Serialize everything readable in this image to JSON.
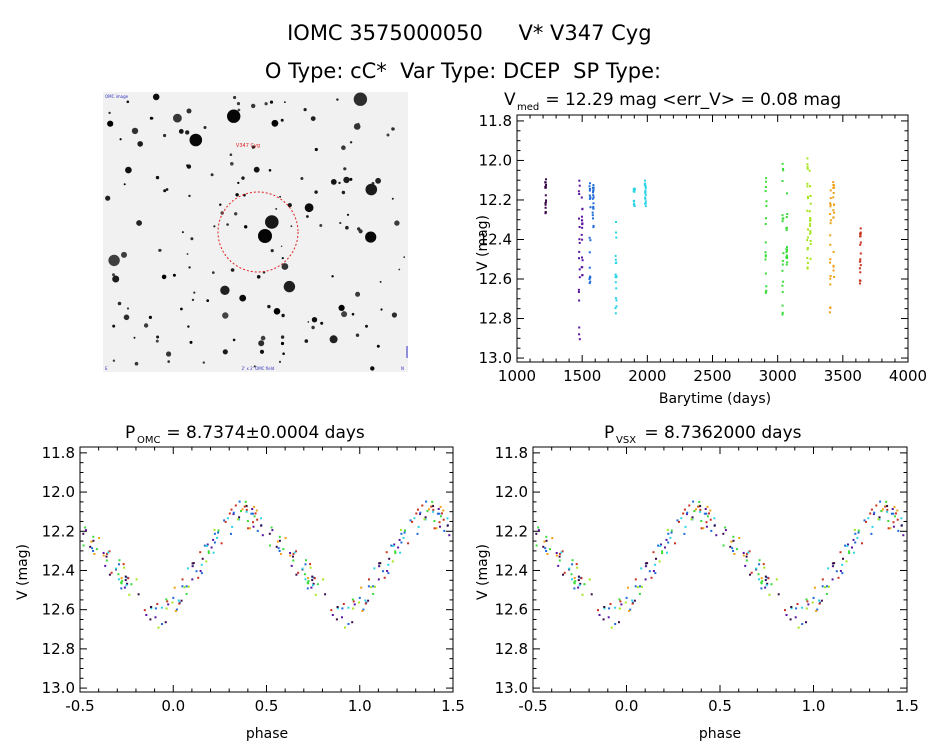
{
  "header": {
    "line1_id": "IOMC 3575000050",
    "line1_name": "V* V347 Cyg",
    "line2": "O Type: cC*  Var Type: DCEP  SP Type:"
  },
  "image_panel": {
    "corner_labels": {
      "top_left": "OMC image",
      "bottom_left": "E",
      "bottom_center": "2' x 2' OMC field",
      "bottom_right": "N",
      "marker": "V347 Cyg"
    }
  },
  "colors": {
    "dark_purple": "#3a0a4a",
    "purple": "#5a14a0",
    "blue": "#1e6ad8",
    "cyan": "#2ad4e6",
    "green": "#3adc3a",
    "lime": "#a6e61e",
    "orange": "#f0a014",
    "red": "#c8321e"
  },
  "chart_data": [
    {
      "type": "scatter",
      "panel": "lightcurve",
      "title": "V_med = 12.29 mag <err_V> = 0.08 mag",
      "title_parts": {
        "main": "V",
        "sub": "med",
        "rest": " = 12.29 mag <err_V> = 0.08 mag"
      },
      "xlabel": "Barytime (days)",
      "ylabel": "V (mag)",
      "xlim": [
        1000,
        4000
      ],
      "ylim": [
        13.02,
        11.77
      ],
      "y_inverted": true,
      "xticks": [
        "1000",
        "1500",
        "2000",
        "2500",
        "3000",
        "3500",
        "4000"
      ],
      "xtick_values": [
        1000,
        1500,
        2000,
        2500,
        3000,
        3500,
        4000
      ],
      "yticks": [
        "11.8",
        "12.0",
        "12.2",
        "12.4",
        "12.6",
        "12.8",
        "13.0"
      ],
      "ytick_values": [
        11.8,
        12.0,
        12.2,
        12.4,
        12.6,
        12.8,
        13.0
      ],
      "groups": [
        {
          "color": "dark_purple",
          "x": 1220,
          "v_min": 12.09,
          "v_max": 12.28
        },
        {
          "color": "purple",
          "x": 1478,
          "v_min": 12.1,
          "v_max": 12.93
        },
        {
          "color": "purple",
          "x": 1500,
          "v_min": 12.1,
          "v_max": 12.6
        },
        {
          "color": "blue",
          "x": 1560,
          "v_min": 12.1,
          "v_max": 12.64
        },
        {
          "color": "blue",
          "x": 1585,
          "v_min": 12.12,
          "v_max": 12.35
        },
        {
          "color": "cyan",
          "x": 1760,
          "v_min": 12.2,
          "v_max": 12.82
        },
        {
          "color": "cyan",
          "x": 1900,
          "v_min": 12.14,
          "v_max": 12.24
        },
        {
          "color": "cyan",
          "x": 1985,
          "v_min": 12.1,
          "v_max": 12.24
        },
        {
          "color": "green",
          "x": 2910,
          "v_min": 12.03,
          "v_max": 12.68
        },
        {
          "color": "green",
          "x": 3040,
          "v_min": 11.95,
          "v_max": 12.78
        },
        {
          "color": "green",
          "x": 3070,
          "v_min": 12.1,
          "v_max": 12.6
        },
        {
          "color": "lime",
          "x": 3230,
          "v_min": 11.98,
          "v_max": 12.55
        },
        {
          "color": "lime",
          "x": 3250,
          "v_min": 12.05,
          "v_max": 12.5
        },
        {
          "color": "orange",
          "x": 3405,
          "v_min": 12.02,
          "v_max": 12.78
        },
        {
          "color": "orange",
          "x": 3430,
          "v_min": 12.05,
          "v_max": 12.6
        },
        {
          "color": "red",
          "x": 3635,
          "v_min": 12.33,
          "v_max": 12.64
        }
      ]
    },
    {
      "type": "scatter",
      "panel": "phase_omc",
      "title": "P_OMC = 8.7374±0.0004 days",
      "title_parts": {
        "main": "P",
        "sub": "OMC",
        "rest": " = 8.7374±0.0004 days"
      },
      "xlabel": "phase",
      "ylabel": "V (mag)",
      "xlim": [
        -0.5,
        1.5
      ],
      "ylim": [
        13.02,
        11.77
      ],
      "y_inverted": true,
      "xticks": [
        "-0.5",
        "0.0",
        "0.5",
        "1.0",
        "1.5"
      ],
      "xtick_values": [
        -0.5,
        0.0,
        0.5,
        1.0,
        1.5
      ],
      "yticks": [
        "11.8",
        "12.0",
        "12.2",
        "12.4",
        "12.6",
        "12.8",
        "13.0"
      ],
      "ytick_values": [
        11.8,
        12.0,
        12.2,
        12.4,
        12.6,
        12.8,
        13.0
      ],
      "period": 8.7374,
      "phase_offset": 0.0
    },
    {
      "type": "scatter",
      "panel": "phase_vsx",
      "title": "P_VSX = 8.7362000 days",
      "title_parts": {
        "main": "P",
        "sub": "VSX",
        "rest": " = 8.7362000 days"
      },
      "xlabel": "phase",
      "ylabel": "V (mag)",
      "xlim": [
        -0.5,
        1.5
      ],
      "ylim": [
        13.02,
        11.77
      ],
      "y_inverted": true,
      "xticks": [
        "-0.5",
        "0.0",
        "0.5",
        "1.0",
        "1.5"
      ],
      "xtick_values": [
        -0.5,
        0.0,
        0.5,
        1.0,
        1.5
      ],
      "yticks": [
        "11.8",
        "12.0",
        "12.2",
        "12.4",
        "12.6",
        "12.8",
        "13.0"
      ],
      "ytick_values": [
        11.8,
        12.0,
        12.2,
        12.4,
        12.6,
        12.8,
        13.0
      ],
      "period": 8.7362,
      "phase_offset": 0.0
    }
  ]
}
